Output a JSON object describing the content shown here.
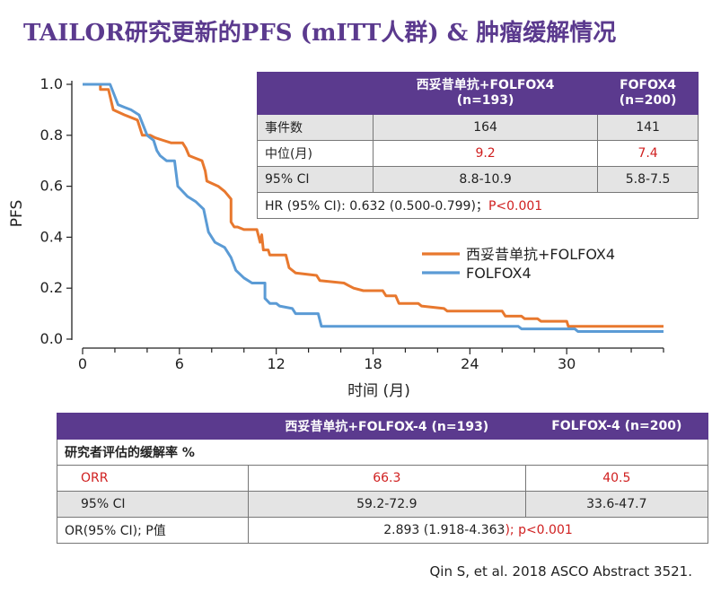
{
  "title": "TAILOR研究更新的PFS (mITT人群) & 肿瘤缓解情况",
  "chart_data": {
    "type": "line",
    "title": "",
    "xlabel": "时间 (月)",
    "ylabel": "PFS",
    "xlim": [
      0,
      36
    ],
    "ylim": [
      0,
      1.0
    ],
    "xticks": [
      0,
      6,
      12,
      18,
      24,
      30
    ],
    "yticks": [
      0.0,
      0.2,
      0.4,
      0.6,
      0.8,
      1.0
    ],
    "xtick_labels": [
      "0",
      "6",
      "12",
      "18",
      "24",
      "30"
    ],
    "ytick_labels": [
      "0.0",
      "0.2",
      "0.4",
      "0.6",
      "0.8",
      "1.0"
    ],
    "legend": [
      "西妥昔单抗+FOLFOX4",
      "FOLFOX4"
    ],
    "series": [
      {
        "name": "西妥昔单抗+FOLFOX4",
        "color": "#e8782e",
        "points": [
          [
            0,
            1.0
          ],
          [
            1.1,
            1.0
          ],
          [
            1.1,
            0.98
          ],
          [
            1.6,
            0.98
          ],
          [
            1.9,
            0.9
          ],
          [
            2.6,
            0.88
          ],
          [
            3.4,
            0.86
          ],
          [
            3.7,
            0.8
          ],
          [
            4.2,
            0.8
          ],
          [
            4.5,
            0.79
          ],
          [
            5.0,
            0.78
          ],
          [
            5.5,
            0.77
          ],
          [
            6.2,
            0.77
          ],
          [
            6.4,
            0.75
          ],
          [
            6.6,
            0.72
          ],
          [
            7.0,
            0.71
          ],
          [
            7.4,
            0.7
          ],
          [
            7.6,
            0.66
          ],
          [
            7.7,
            0.62
          ],
          [
            8.4,
            0.6
          ],
          [
            8.8,
            0.58
          ],
          [
            9.2,
            0.55
          ],
          [
            9.2,
            0.46
          ],
          [
            9.4,
            0.44
          ],
          [
            9.6,
            0.44
          ],
          [
            10.0,
            0.43
          ],
          [
            10.8,
            0.43
          ],
          [
            11.0,
            0.38
          ],
          [
            11.1,
            0.41
          ],
          [
            11.2,
            0.35
          ],
          [
            11.5,
            0.35
          ],
          [
            11.6,
            0.33
          ],
          [
            12.6,
            0.33
          ],
          [
            12.8,
            0.28
          ],
          [
            13.2,
            0.26
          ],
          [
            14.5,
            0.25
          ],
          [
            14.7,
            0.23
          ],
          [
            16.2,
            0.22
          ],
          [
            16.5,
            0.21
          ],
          [
            16.8,
            0.2
          ],
          [
            17.4,
            0.19
          ],
          [
            18.6,
            0.19
          ],
          [
            18.8,
            0.17
          ],
          [
            19.4,
            0.17
          ],
          [
            19.6,
            0.14
          ],
          [
            20.8,
            0.14
          ],
          [
            21.0,
            0.13
          ],
          [
            22.4,
            0.12
          ],
          [
            22.6,
            0.11
          ],
          [
            26.0,
            0.11
          ],
          [
            26.2,
            0.09
          ],
          [
            27.2,
            0.09
          ],
          [
            27.4,
            0.08
          ],
          [
            28.2,
            0.08
          ],
          [
            28.4,
            0.07
          ],
          [
            30.0,
            0.07
          ],
          [
            30.1,
            0.05
          ],
          [
            36.0,
            0.05
          ]
        ]
      },
      {
        "name": "FOLFOX4",
        "color": "#5b9bd5",
        "points": [
          [
            0,
            1.0
          ],
          [
            1.7,
            1.0
          ],
          [
            2.2,
            0.92
          ],
          [
            2.6,
            0.91
          ],
          [
            3.0,
            0.9
          ],
          [
            3.5,
            0.88
          ],
          [
            4.0,
            0.8
          ],
          [
            4.4,
            0.78
          ],
          [
            4.6,
            0.74
          ],
          [
            4.8,
            0.72
          ],
          [
            5.2,
            0.7
          ],
          [
            5.6,
            0.7
          ],
          [
            5.7,
            0.7
          ],
          [
            5.9,
            0.6
          ],
          [
            6.5,
            0.56
          ],
          [
            7.0,
            0.54
          ],
          [
            7.5,
            0.51
          ],
          [
            7.8,
            0.42
          ],
          [
            8.2,
            0.38
          ],
          [
            8.8,
            0.36
          ],
          [
            9.2,
            0.32
          ],
          [
            9.5,
            0.27
          ],
          [
            10.0,
            0.24
          ],
          [
            10.5,
            0.22
          ],
          [
            11.3,
            0.22
          ],
          [
            11.3,
            0.16
          ],
          [
            11.6,
            0.14
          ],
          [
            12.0,
            0.14
          ],
          [
            12.2,
            0.13
          ],
          [
            13.0,
            0.12
          ],
          [
            13.2,
            0.1
          ],
          [
            14.6,
            0.1
          ],
          [
            14.8,
            0.05
          ],
          [
            15.0,
            0.05
          ],
          [
            27.0,
            0.05
          ],
          [
            27.2,
            0.04
          ],
          [
            30.5,
            0.04
          ],
          [
            30.7,
            0.03
          ],
          [
            36.0,
            0.03
          ]
        ]
      }
    ]
  },
  "pfs_table": {
    "headers": [
      "",
      "西妥昔单抗+FOLFOX4\n(n=193)",
      "FOFOX4\n(n=200)"
    ],
    "rows": [
      {
        "label": "事件数",
        "a": "164",
        "b": "141"
      },
      {
        "label": "中位(月)",
        "a": "9.2",
        "b": "7.4"
      },
      {
        "label": "95% CI",
        "a": "8.8-10.9",
        "b": "5.8-7.5"
      }
    ],
    "hr_text": "HR (95% CI): 0.632 (0.500-0.799)；",
    "hr_p": "P<0.001"
  },
  "orr_table": {
    "headers": [
      "",
      "西妥昔单抗+FOLFOX-4 (n=193)",
      "FOLFOX-4 (n=200)"
    ],
    "section": "研究者评估的缓解率 %",
    "rows": [
      {
        "label": "ORR",
        "a": "66.3",
        "b": "40.5"
      },
      {
        "label": "95% CI",
        "a": "59.2-72.9",
        "b": "33.6-47.7"
      }
    ],
    "or_label": "OR(95% CI); P值",
    "or_value": "2.893 (1.918-4.363",
    "or_p": "); p<0.001"
  },
  "citation": "Qin S, et al. 2018 ASCO Abstract 3521."
}
